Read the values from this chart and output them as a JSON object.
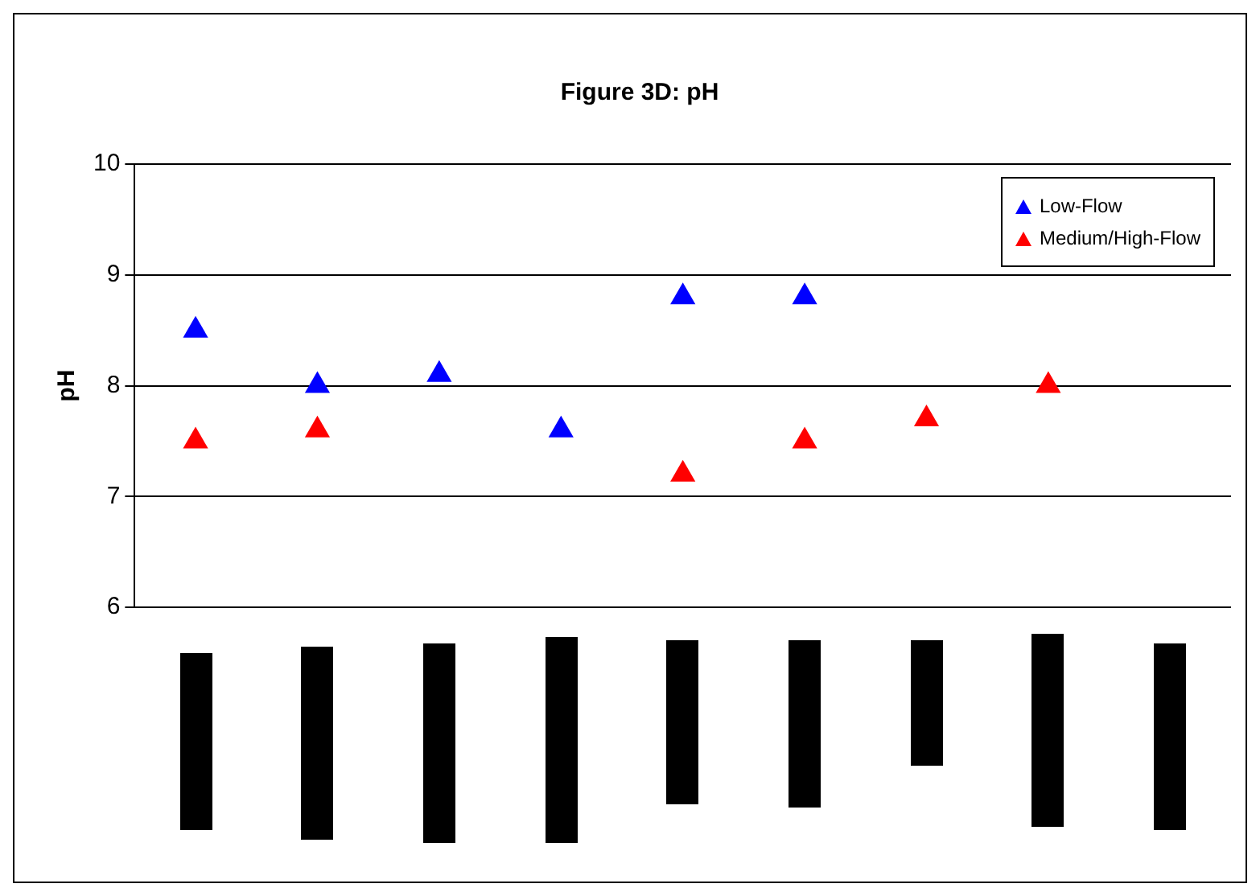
{
  "chart_data": {
    "type": "scatter",
    "title": "Figure 3D: pH",
    "ylabel": "pH",
    "categories": [
      null,
      null,
      null,
      null,
      null,
      null,
      null,
      null,
      null
    ],
    "series": [
      {
        "name": "Low-Flow",
        "color": "#0000ff",
        "values": [
          8.5,
          8.0,
          8.1,
          7.6,
          8.8,
          8.8,
          null,
          null,
          null
        ]
      },
      {
        "name": "Medium/High-Flow",
        "color": "#ff0000",
        "values": [
          7.5,
          7.6,
          null,
          null,
          7.2,
          7.5,
          7.7,
          8.0,
          null
        ]
      }
    ],
    "ylim": [
      6,
      10
    ],
    "yticks": [
      6,
      7,
      8,
      9,
      10
    ],
    "grid": "y",
    "legend": "top right",
    "marker": "triangle"
  }
}
